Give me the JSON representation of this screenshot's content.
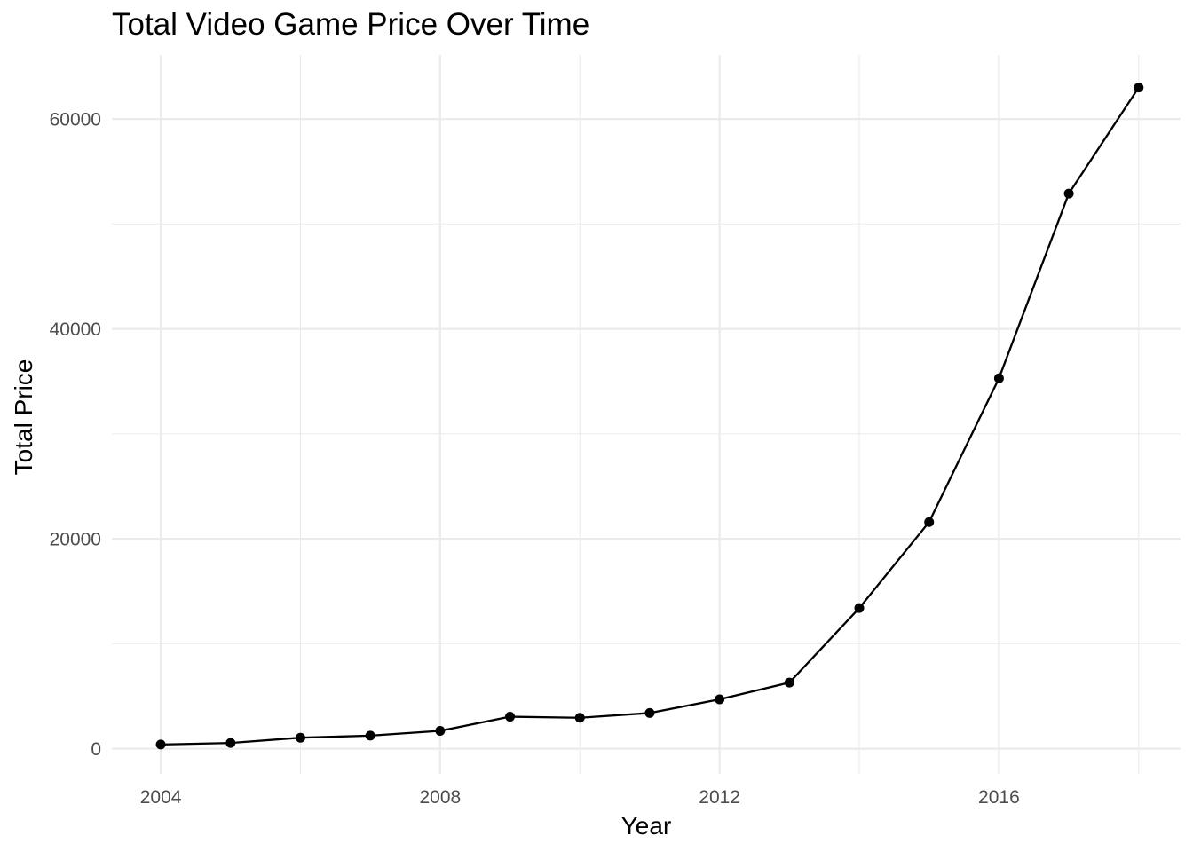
{
  "chart_data": {
    "type": "line",
    "title": "Total Video Game Price Over Time",
    "xlabel": "Year",
    "ylabel": "Total Price",
    "x": [
      2004,
      2005,
      2006,
      2007,
      2008,
      2009,
      2010,
      2011,
      2012,
      2013,
      2014,
      2015,
      2016,
      2017,
      2018
    ],
    "series": [
      {
        "values": [
          400,
          550,
          1050,
          1250,
          1700,
          3050,
          2950,
          3400,
          4700,
          6300,
          13400,
          21600,
          35300,
          52900,
          63000
        ]
      }
    ],
    "xlim": [
      2003.3,
      2018.6
    ],
    "ylim": [
      -2400,
      66100
    ],
    "x_ticks": [
      2004,
      2008,
      2012,
      2016
    ],
    "x_tick_labels": [
      "2004",
      "2008",
      "2012",
      "2016"
    ],
    "x_minor_ticks": [
      2006,
      2010,
      2014,
      2018
    ],
    "y_ticks": [
      0,
      20000,
      40000,
      60000
    ],
    "y_tick_labels": [
      "0",
      "20000",
      "40000",
      "60000"
    ],
    "y_minor_ticks": [
      10000,
      30000,
      50000
    ],
    "grid": true,
    "legend": "none",
    "colors": {
      "line": "#000000",
      "point": "#000000",
      "grid": "#ebebeb",
      "tick_text": "#4d4d4d",
      "text": "#000000",
      "background": "#ffffff"
    }
  }
}
